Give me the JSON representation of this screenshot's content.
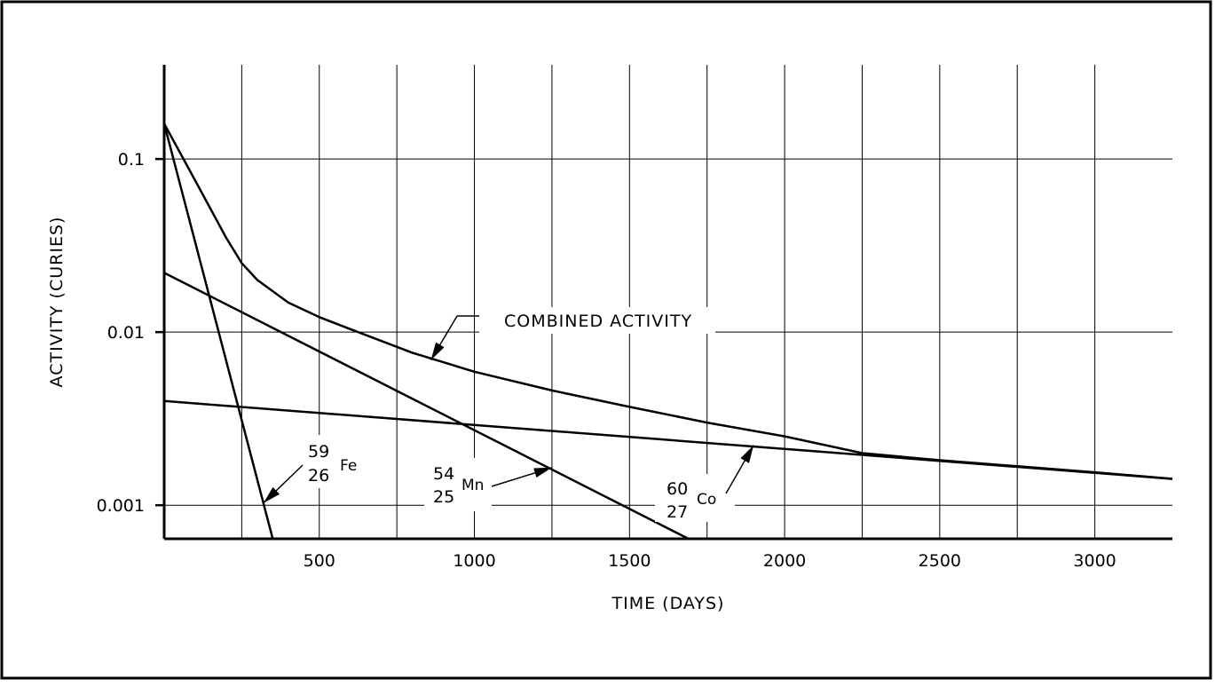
{
  "chart_data": {
    "type": "line",
    "xlabel": "TIME (DAYS)",
    "ylabel": "ACTIVITY (CURIES)",
    "xlim": [
      0,
      3250
    ],
    "ylim": [
      0.00064,
      0.35
    ],
    "yscale": "log",
    "grid": true,
    "x_ticks": [
      500,
      1000,
      1500,
      2000,
      2500,
      3000
    ],
    "x_tick_labels": [
      "500",
      "1000",
      "1500",
      "2000",
      "2500",
      "3000"
    ],
    "x_grid_lines": [
      250,
      500,
      750,
      1000,
      1250,
      1500,
      1750,
      2000,
      2250,
      2500,
      2750,
      3000
    ],
    "y_ticks": [
      0.1,
      0.01,
      0.001
    ],
    "y_tick_labels": [
      "0.1",
      "0.01",
      "0.001"
    ],
    "series": [
      {
        "name": "Fe-59",
        "x": [
          0,
          350
        ],
        "y": [
          0.16,
          0.00064
        ]
      },
      {
        "name": "Mn-54",
        "x": [
          0,
          1690
        ],
        "y": [
          0.022,
          0.00064
        ]
      },
      {
        "name": "Co-60",
        "x": [
          0,
          3250
        ],
        "y": [
          0.004,
          0.00142
        ]
      },
      {
        "name": "Combined activity",
        "x": [
          0,
          100,
          200,
          250,
          300,
          400,
          500,
          600,
          800,
          1000,
          1250,
          1500,
          1750,
          2000,
          2250,
          2500,
          2750,
          3000,
          3250
        ],
        "y": [
          0.16,
          0.075,
          0.035,
          0.025,
          0.02,
          0.0148,
          0.0122,
          0.0104,
          0.0076,
          0.0059,
          0.0046,
          0.0037,
          0.003,
          0.0025,
          0.002,
          0.00182,
          0.00168,
          0.00155,
          0.00142
        ]
      }
    ],
    "annotations": {
      "combined": {
        "text": "COMBINED ACTIVITY",
        "arrow_to": [
          860,
          0.0069
        ]
      },
      "fe": {
        "mass": "59",
        "atomic": "26",
        "symbol": "Fe",
        "arrow_to": [
          320,
          0.00103
        ]
      },
      "mn": {
        "mass": "54",
        "atomic": "25",
        "symbol": "Mn",
        "arrow_to": [
          1250,
          0.00165
        ]
      },
      "co": {
        "mass": "60",
        "atomic": "27",
        "symbol": "Co",
        "arrow_to": [
          1900,
          0.00222
        ]
      }
    }
  }
}
